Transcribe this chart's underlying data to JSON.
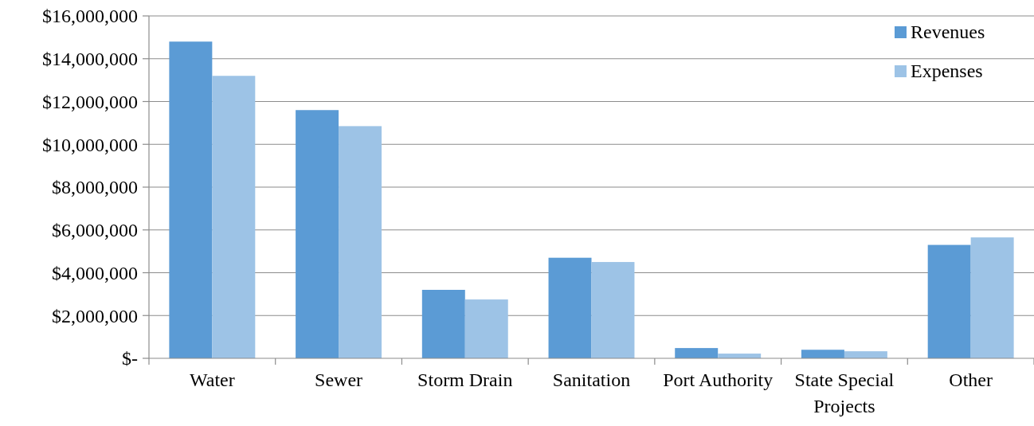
{
  "chart_data": {
    "type": "bar",
    "categories": [
      "Water",
      "Sewer",
      "Storm Drain",
      "Sanitation",
      "Port Authority",
      "State Special Projects",
      "Other"
    ],
    "series": [
      {
        "name": "Revenues",
        "color": "#5b9bd5",
        "values": [
          14800000,
          11600000,
          3200000,
          4700000,
          480000,
          400000,
          5300000
        ]
      },
      {
        "name": "Expenses",
        "color": "#9dc3e6",
        "values": [
          13200000,
          10850000,
          2750000,
          4500000,
          220000,
          330000,
          5650000
        ]
      }
    ],
    "ylim": [
      0,
      16000000
    ],
    "yticks": [
      {
        "value": 0,
        "label": "$-"
      },
      {
        "value": 2000000,
        "label": "$2,000,000"
      },
      {
        "value": 4000000,
        "label": "$4,000,000"
      },
      {
        "value": 6000000,
        "label": "$6,000,000"
      },
      {
        "value": 8000000,
        "label": "$8,000,000"
      },
      {
        "value": 10000000,
        "label": "$10,000,000"
      },
      {
        "value": 12000000,
        "label": "$12,000,000"
      },
      {
        "value": 14000000,
        "label": "$14,000,000"
      },
      {
        "value": 16000000,
        "label": "$16,000,000"
      }
    ],
    "grid": "y",
    "legend": "top right"
  }
}
